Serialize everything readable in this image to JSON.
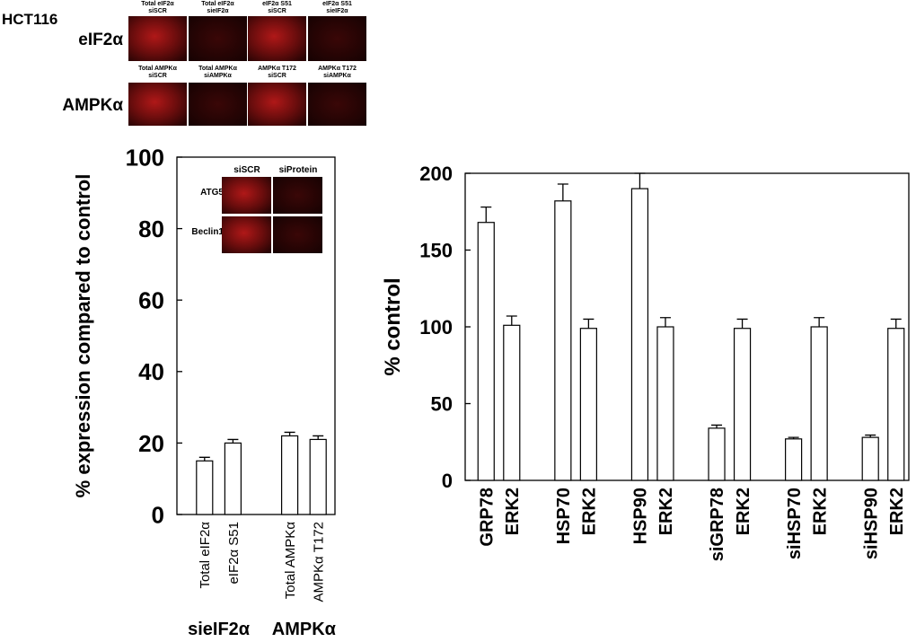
{
  "figure": {
    "cell_line": "HCT116",
    "rows": [
      {
        "label": "eIF2α",
        "panels": [
          [
            "Total eIF2α",
            "siSCR"
          ],
          [
            "Total eIF2α",
            "sieIF2α"
          ],
          [
            "eIF2α S51",
            "siSCR"
          ],
          [
            "eIF2α S51",
            "sieIF2α"
          ]
        ]
      },
      {
        "label": "AMPKα",
        "panels": [
          [
            "Total AMPKα",
            "siSCR"
          ],
          [
            "Total AMPKα",
            "siAMPKα"
          ],
          [
            "AMPKα T172",
            "siSCR"
          ],
          [
            "AMPKα T172",
            "siAMPKα"
          ]
        ]
      }
    ],
    "inset": {
      "col_labels": [
        "siSCR",
        "siProtein"
      ],
      "row_labels": [
        "ATG5",
        "Beclin1"
      ]
    }
  },
  "chart_data": [
    {
      "type": "bar",
      "ylabel": "% expression compared to control",
      "categories": [
        "Total eIF2α",
        "eIF2α S51",
        null,
        "Total AMPKα",
        "AMPKα T172"
      ],
      "values": [
        15,
        20,
        null,
        22,
        21
      ],
      "errors": [
        1,
        1,
        null,
        1,
        1
      ],
      "group_labels": [
        "sieIF2α",
        "AMPKα"
      ],
      "color": "#ffffff",
      "ylim": [
        0,
        100
      ],
      "yticks": [
        0,
        20,
        40,
        60,
        80,
        100
      ],
      "grid": false
    },
    {
      "type": "bar",
      "ylabel": "% control",
      "categories": [
        "GRP78",
        "ERK2",
        null,
        "HSP70",
        "ERK2",
        null,
        "HSP90",
        "ERK2",
        null,
        "siGRP78",
        "ERK2",
        null,
        "siHSP70",
        "ERK2",
        null,
        "siHSP90",
        "ERK2"
      ],
      "values": [
        168,
        101,
        null,
        182,
        99,
        null,
        190,
        100,
        null,
        34,
        99,
        null,
        27,
        100,
        null,
        28,
        99
      ],
      "errors": [
        10,
        6,
        null,
        11,
        6,
        null,
        10,
        6,
        null,
        2,
        6,
        null,
        1,
        6,
        null,
        1.5,
        6
      ],
      "color": "#ffffff",
      "ylim": [
        0,
        200
      ],
      "yticks": [
        0,
        50,
        100,
        150,
        200
      ],
      "grid": false
    }
  ]
}
